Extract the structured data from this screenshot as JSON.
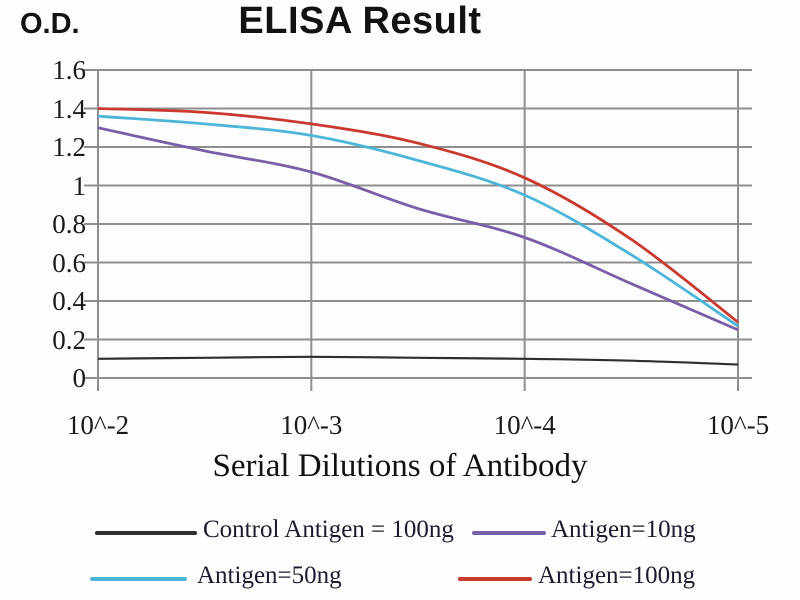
{
  "chart_data": {
    "type": "line",
    "title": "ELISA Result",
    "ylabel": "O.D.",
    "xlabel": "Serial Dilutions of Antibody",
    "x_tick_labels": [
      "10^-2",
      "10^-3",
      "10^-4",
      "10^-5"
    ],
    "x_tick_values": [
      -2,
      -3,
      -4,
      -5
    ],
    "y_tick_labels": [
      "1.6",
      "1.4",
      "1.2",
      "1",
      "0.8",
      "0.6",
      "0.4",
      "0.2",
      "0"
    ],
    "y_tick_values": [
      1.6,
      1.4,
      1.2,
      1.0,
      0.8,
      0.6,
      0.4,
      0.2,
      0
    ],
    "ylim": [
      0,
      1.6
    ],
    "xlim_log10": [
      -2,
      -5
    ],
    "grid": true,
    "grid_color": "#8e8e8e",
    "legend_position": "bottom",
    "x_log10": [
      -2,
      -2.5,
      -3,
      -3.5,
      -4,
      -4.5,
      -5
    ],
    "series": [
      {
        "name": "Control Antigen = 100ng",
        "color": "#2e2e2e",
        "values": [
          0.1,
          0.105,
          0.11,
          0.105,
          0.1,
          0.09,
          0.07
        ]
      },
      {
        "name": "Antigen=10ng",
        "color": "#7a5fa8",
        "values": [
          1.3,
          1.18,
          1.07,
          0.88,
          0.73,
          0.49,
          0.25
        ]
      },
      {
        "name": "Antigen=50ng",
        "color": "#4db5d8",
        "values": [
          1.36,
          1.32,
          1.26,
          1.13,
          0.95,
          0.64,
          0.27
        ]
      },
      {
        "name": "Antigen=100ng",
        "color": "#c9392e",
        "values": [
          1.4,
          1.38,
          1.32,
          1.22,
          1.04,
          0.72,
          0.29
        ]
      }
    ]
  }
}
